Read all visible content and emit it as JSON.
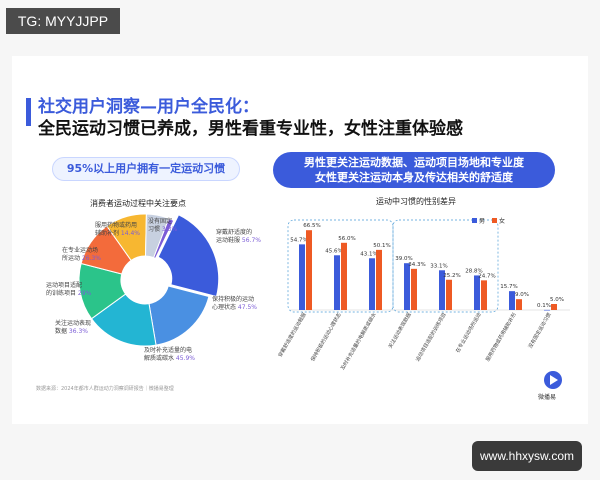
{
  "tag": "TG: MYYJJPP",
  "title_line1": "社交用户洞察—用户全民化：",
  "title_line2": "全民运动习惯已养成，男性看重专业性，女性注重体验感",
  "left_pill": "95%以上用户拥有一定运动习惯",
  "right_pill_line1": "男性更关注运动数据、运动项目场地和专业度",
  "right_pill_line2": "女性更关注运动本身及传达相关的舒适度",
  "source": "数据来源：2024年都市人群运动力洞察调研报告｜微播易整理",
  "watermark": "www.hhxysw.com",
  "logo_text": "微播易",
  "colors": {
    "accent": "#3b5bdb",
    "male": "#3b5bdb",
    "female": "#ee5a24"
  },
  "chart_data": [
    {
      "type": "pie",
      "title": "消费者运动过程中关注要点",
      "slices": [
        {
          "label": "穿戴舒适度的运动鞋服",
          "value": 56.7,
          "display": "56.7%",
          "color": "#3b5bdb"
        },
        {
          "label": "保持积极的运动心理状态",
          "value": 47.5,
          "display": "47.5%",
          "color": "#4a90e2"
        },
        {
          "label": "及时补充适量的电解质或碳水",
          "value": 45.9,
          "display": "45.9%",
          "color": "#23b5d3"
        },
        {
          "label": "关注运动表现数据",
          "value": 36.3,
          "display": "36.3%",
          "color": "#2bc48a"
        },
        {
          "label": "运动项目适配的训练项目",
          "value": 29,
          "display": "29%",
          "color": "#f36b3b"
        },
        {
          "label": "在专业运动场所运动",
          "value": 26.3,
          "display": "26.3%",
          "color": "#f7b731"
        },
        {
          "label": "服用药物或药用辅助补剂",
          "value": 14.4,
          "display": "14.4%",
          "color": "#c7d0e0"
        },
        {
          "label": "没有固定习惯",
          "value": 3.3,
          "display": "3.3%",
          "color": "#7b5cd6"
        }
      ]
    },
    {
      "type": "bar",
      "title": "运动中习惯的性别差异",
      "categories": [
        "穿戴舒适度的运动鞋服",
        "保持积极的运动心理状态",
        "及时补充适量的电解质或碳水",
        "关注运动表现数据",
        "运动项目适配的训练项目",
        "在专业运动场所运动",
        "服用药物或药用辅助补剂",
        "没有固定运动习惯"
      ],
      "series": [
        {
          "name": "男",
          "values": [
            54.7,
            45.6,
            43.1,
            39.0,
            33.1,
            28.8,
            15.7,
            0.1
          ],
          "display": [
            "54.7%",
            "45.6%",
            "43.1%",
            "39.0%",
            "33.1%",
            "28.8%",
            "15.7%",
            "0.1%"
          ]
        },
        {
          "name": "女",
          "values": [
            66.5,
            56.0,
            50.1,
            34.3,
            25.2,
            24.7,
            9.0,
            5.0
          ],
          "display": [
            "66.5%",
            "56.0%",
            "50.1%",
            "34.3%",
            "25.2%",
            "24.7%",
            "9.0%",
            "5.0%"
          ]
        }
      ],
      "ylim": [
        0,
        75
      ],
      "legend": "top-right"
    }
  ]
}
